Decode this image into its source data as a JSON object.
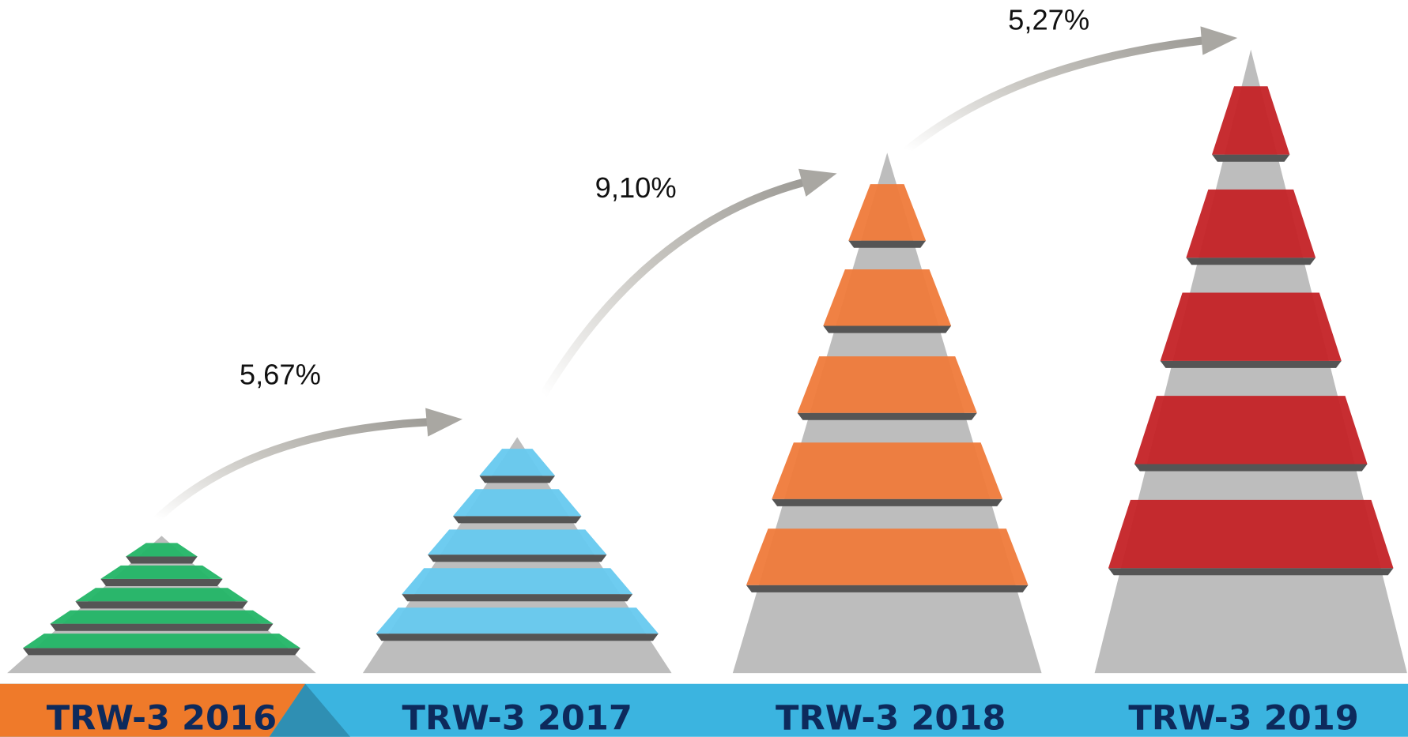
{
  "pyramids": [
    {
      "label": "TRW-3 2016",
      "color": "#22b566"
    },
    {
      "label": "TRW-3 2017",
      "color": "#66c9ef"
    },
    {
      "label": "TRW-3 2018",
      "color": "#ef7a3a"
    },
    {
      "label": "TRW-3 2019",
      "color": "#c42226"
    }
  ],
  "growth": [
    "5,67%",
    "9,10%",
    "5,27%"
  ]
}
